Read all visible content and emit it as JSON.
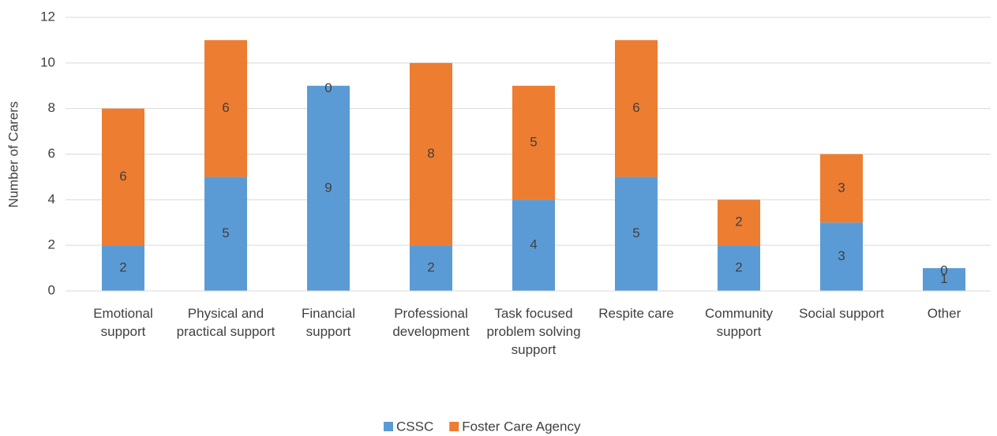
{
  "chart_data": {
    "type": "stacked_bar",
    "y_label": "Number of Carers",
    "categories": [
      "Emotional support",
      "Physical and practical support",
      "Financial support",
      "Professional development",
      "Task focused problem solving support",
      "Respite care",
      "Community support",
      "Social support",
      "Other"
    ],
    "series": [
      {
        "name": "CSSC",
        "color": "#5b9bd5",
        "values": [
          2,
          5,
          9,
          2,
          4,
          5,
          2,
          3,
          1
        ]
      },
      {
        "name": "Foster Care Agency",
        "color": "#ed7d31",
        "values": [
          6,
          6,
          0,
          8,
          5,
          6,
          2,
          3,
          0
        ]
      }
    ],
    "ylim": [
      0,
      12
    ],
    "yticks": [
      0,
      2,
      4,
      6,
      8,
      10,
      12
    ],
    "grid": true,
    "legend": "bottom"
  }
}
